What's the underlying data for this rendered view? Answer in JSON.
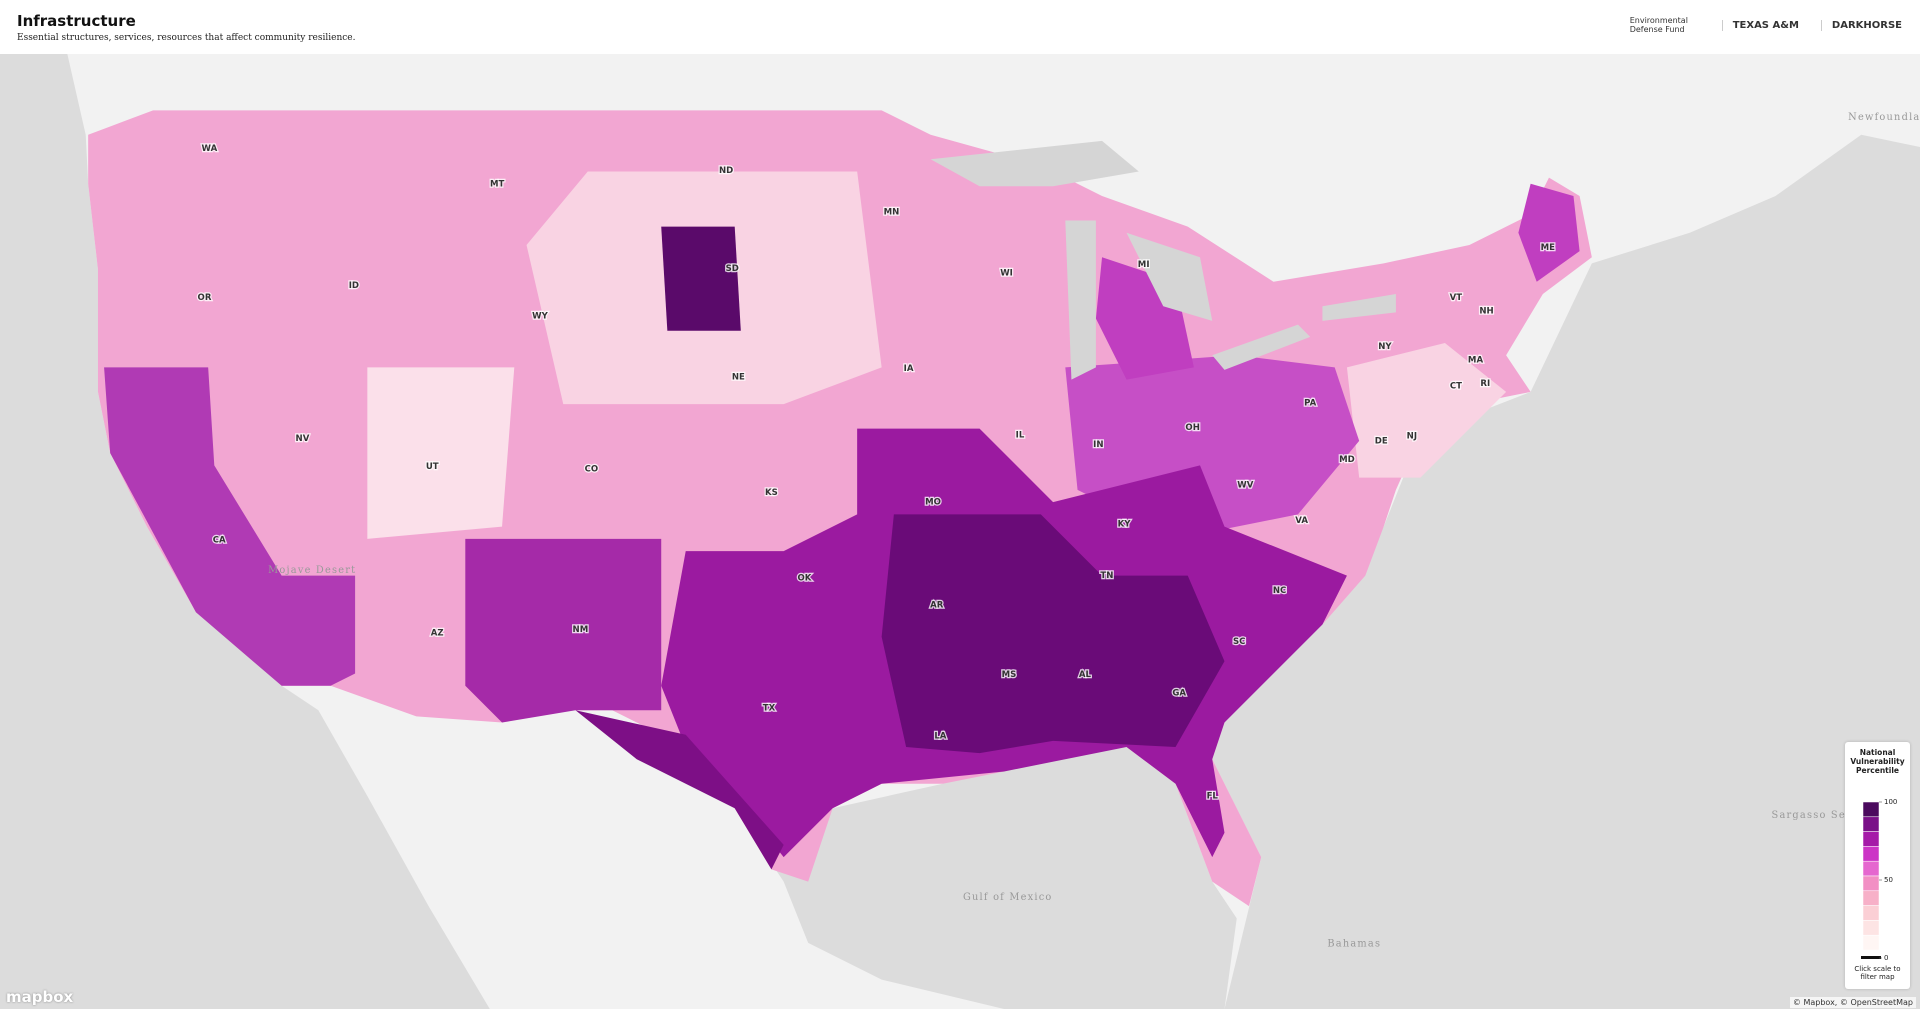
{
  "header": {
    "title": "Infrastructure",
    "subtitle": "Essential structures, services, resources that affect community resilience.",
    "logos": [
      "Environmental Defense Fund",
      "TEXAS A&M",
      "DARKHORSE"
    ]
  },
  "map": {
    "state_labels": [
      "WA",
      "MT",
      "ND",
      "MN",
      "OR",
      "ID",
      "WY",
      "SD",
      "WI",
      "MI",
      "ME",
      "VT",
      "NH",
      "NY",
      "MA",
      "CT",
      "RI",
      "IA",
      "NE",
      "PA",
      "NJ",
      "NV",
      "UT",
      "CO",
      "IL",
      "IN",
      "OH",
      "DE",
      "MD",
      "WV",
      "KS",
      "MO",
      "KY",
      "VA",
      "CA",
      "TN",
      "NC",
      "OK",
      "AR",
      "AZ",
      "NM",
      "SC",
      "MS",
      "AL",
      "GA",
      "TX",
      "LA",
      "FL"
    ],
    "place_labels": [
      "Newfoundland",
      "Sargasso Sea",
      "Gulf of Mexico",
      "Bahamas",
      "Mojave Desert"
    ]
  },
  "legend": {
    "title": "National Vulnerability Percentile",
    "colors": [
      "#4b0a5e",
      "#7a1088",
      "#a51aa8",
      "#cc34c6",
      "#e567cf",
      "#f28fc4",
      "#f7b0c8",
      "#fbcfd5",
      "#fde4e4",
      "#fff6f4"
    ],
    "lim": [
      0,
      100
    ],
    "ticks": [
      100,
      50,
      0
    ],
    "hint": "Click scale to filter map"
  },
  "footer": {
    "logo": "mapbox",
    "attribution": "© Mapbox, © OpenStreetMap"
  }
}
